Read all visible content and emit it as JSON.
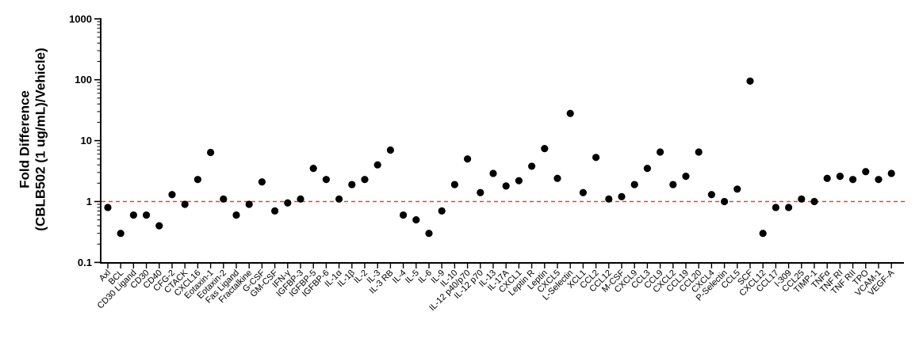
{
  "chart_data": {
    "type": "scatter",
    "title": "",
    "ylabel_line1": "Fold Difference",
    "ylabel_line2": "(CBLB502 (1 ug/mL)/Vehicle)",
    "xlabel": "",
    "y_scale": "log",
    "ylim": [
      0.1,
      1000
    ],
    "y_ticks": [
      0.1,
      1,
      10,
      100,
      1000
    ],
    "y_tick_labels": [
      "0.1",
      "1",
      "10",
      "100",
      "1000"
    ],
    "grid": "off",
    "legend": "none",
    "reference_line": {
      "y": 1,
      "style": "dashed",
      "color": "#fa3a3a"
    },
    "point_color": "#000000",
    "axis_color": "#000000",
    "categories": [
      "Axl",
      "BCL",
      "CD30 Ligand",
      "CD30",
      "CD40",
      "CFG-2",
      "CTACK",
      "CXCL16",
      "Eotaxin-1",
      "Eotaxin-2",
      "Fas Ligand",
      "Fractalkine",
      "G-CSF",
      "GM-CSF",
      "IFN-γ",
      "IGFBP-3",
      "IGFBP-5",
      "IGFBP-6",
      "IL-1α",
      "IL-1β",
      "IL-2",
      "IL-3",
      "IL-3 RB",
      "IL-4",
      "IL-5",
      "IL-6",
      "IL-9",
      "IL-10",
      "IL-12 p40/p70",
      "IL-12 p70",
      "IL-13",
      "IL-17A",
      "CXCL1",
      "Leptin R",
      "Leptin",
      "CXCL5",
      "L-Selectin",
      "XCL1",
      "CCL2",
      "CCL12",
      "M-CSF",
      "CXCL9",
      "CCL3",
      "CCL9",
      "CXCL2",
      "CCL19",
      "CCL20",
      "CXCL4",
      "P-Selectin",
      "CCL5",
      "SCF",
      "CXCL12",
      "CCL17",
      "I-309",
      "CCL25",
      "TIMP-1",
      "TNFα",
      "TNF RI",
      "TNF RII",
      "TPO",
      "VCAM-1",
      "VEGF-A"
    ],
    "values": [
      0.8,
      0.3,
      0.6,
      0.6,
      0.4,
      1.3,
      0.9,
      2.3,
      6.4,
      1.1,
      0.6,
      0.9,
      2.1,
      0.7,
      0.95,
      1.1,
      3.5,
      2.3,
      1.1,
      1.9,
      2.3,
      4.0,
      7.0,
      0.6,
      0.5,
      0.3,
      0.7,
      1.9,
      5.0,
      1.4,
      2.9,
      1.8,
      2.2,
      3.8,
      7.4,
      2.4,
      28,
      1.4,
      5.3,
      1.1,
      1.2,
      1.9,
      3.5,
      6.5,
      1.9,
      2.6,
      6.5,
      1.3,
      1.0,
      1.6,
      95,
      0.3,
      0.8,
      0.8,
      1.1,
      1.0,
      2.4,
      2.6,
      2.3,
      3.1,
      2.3,
      2.9
    ]
  }
}
